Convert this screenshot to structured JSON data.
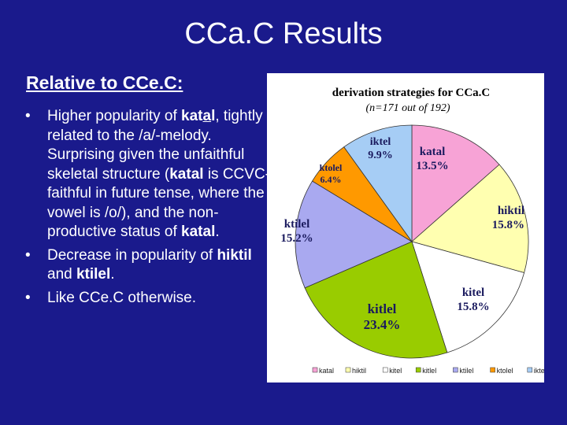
{
  "slide": {
    "title": "CCa.C Results",
    "subheading": "Relative to CCe.C:",
    "bullets": {
      "b1": {
        "t1": "Higher popularity of ",
        "katal_pre": "kat",
        "katal_a": "a",
        "katal_post": "l",
        "t2": ", tightly related to the /a/-melody. Surprising given the unfaithful skeletal structure (",
        "t3": "katal",
        "t4": " is CCVC-faithful in future tense, where the vowel is /o/), and the non-productive status of ",
        "t5": "katal",
        "t6": "."
      },
      "b2": {
        "t1": "Decrease in popularity of ",
        "t2": "hiktil",
        "t3": " and ",
        "t4": "ktilel",
        "t5": "."
      },
      "b3": {
        "t1": "Like CCe.C otherwise."
      }
    }
  },
  "chart_data": {
    "type": "pie",
    "title": "derivation strategies for CCa.C",
    "subtitle": "(n=171 out of 192)",
    "labels": [
      "katal",
      "hiktil",
      "kitel",
      "kitlel",
      "ktilel",
      "ktolel",
      "iktel"
    ],
    "legend_labels": [
      "katal",
      "hiktil",
      "kitel",
      "kitlel",
      "ktilel",
      "ktolel",
      "iktel"
    ],
    "values": [
      13.5,
      15.8,
      15.8,
      23.4,
      15.2,
      6.4,
      9.9
    ],
    "value_labels": [
      "13.5%",
      "15.8%",
      "15.8%",
      "23.4%",
      "15.2%",
      "6.4%",
      "9.9%"
    ],
    "colors": [
      "#f7a3d6",
      "#ffffb0",
      "#ffffff",
      "#99cc00",
      "#a9a9f0",
      "#ff9900",
      "#a6cdf5"
    ],
    "legend_position": "bottom"
  }
}
